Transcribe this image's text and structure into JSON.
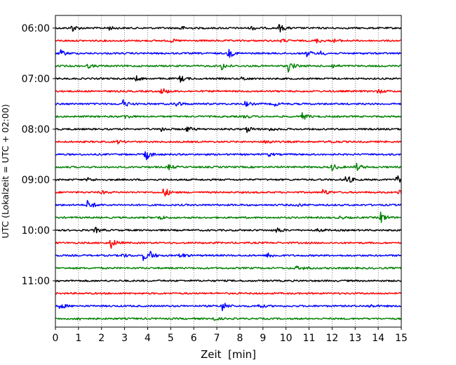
{
  "chart_data": {
    "type": "line",
    "title": "",
    "xlabel": "Zeit  [min]",
    "ylabel": "UTC (Lokalzeit = UTC + 02:00)",
    "xlim": [
      0,
      15
    ],
    "x_ticks": [
      "0",
      "1",
      "2",
      "3",
      "4",
      "5",
      "6",
      "7",
      "8",
      "9",
      "10",
      "11",
      "12",
      "13",
      "14",
      "15"
    ],
    "y_ticks": [
      "06:00",
      "07:00",
      "08:00",
      "09:00",
      "10:00",
      "11:00"
    ],
    "grid": "vertical dotted",
    "legend": "none",
    "colors": [
      "#000000",
      "#ff0000",
      "#0000ff",
      "#008000"
    ],
    "series": [
      {
        "time": "06:00",
        "color": "#000000",
        "events": [
          [
            0.7,
            1.0
          ],
          [
            2.3,
            0.5
          ],
          [
            5.4,
            0.6
          ],
          [
            8.5,
            0.5
          ],
          [
            9.7,
            1.1
          ]
        ]
      },
      {
        "time": "06:15",
        "color": "#ff0000",
        "events": [
          [
            5.0,
            0.4
          ],
          [
            9.8,
            0.4
          ],
          [
            11.3,
            0.6
          ],
          [
            12.1,
            0.4
          ]
        ]
      },
      {
        "time": "06:30",
        "color": "#0000ff",
        "events": [
          [
            0.2,
            0.9
          ],
          [
            7.5,
            1.2
          ],
          [
            10.9,
            0.8
          ],
          [
            11.5,
            0.5
          ]
        ]
      },
      {
        "time": "06:45",
        "color": "#008000",
        "events": [
          [
            1.4,
            0.5
          ],
          [
            7.2,
            1.0
          ],
          [
            10.1,
            1.5
          ],
          [
            12.0,
            0.5
          ]
        ]
      },
      {
        "time": "07:00",
        "color": "#000000",
        "events": [
          [
            3.5,
            0.6
          ],
          [
            5.4,
            0.9
          ],
          [
            8.1,
            0.5
          ]
        ]
      },
      {
        "time": "07:15",
        "color": "#ff0000",
        "events": [
          [
            4.6,
            1.0
          ],
          [
            14.0,
            0.6
          ]
        ]
      },
      {
        "time": "07:30",
        "color": "#0000ff",
        "events": [
          [
            2.9,
            1.2
          ],
          [
            5.2,
            1.0
          ],
          [
            8.2,
            0.7
          ],
          [
            9.5,
            0.5
          ]
        ]
      },
      {
        "time": "07:45",
        "color": "#008000",
        "events": [
          [
            3.0,
            0.6
          ],
          [
            8.2,
            0.5
          ],
          [
            10.7,
            1.0
          ]
        ]
      },
      {
        "time": "08:00",
        "color": "#000000",
        "events": [
          [
            4.6,
            0.6
          ],
          [
            5.7,
            0.7
          ],
          [
            8.3,
            0.8
          ],
          [
            9.3,
            0.4
          ]
        ]
      },
      {
        "time": "08:15",
        "color": "#ff0000",
        "events": [
          [
            2.7,
            0.4
          ],
          [
            9.1,
            0.8
          ],
          [
            11.9,
            0.4
          ]
        ]
      },
      {
        "time": "08:30",
        "color": "#0000ff",
        "events": [
          [
            3.9,
            1.6
          ],
          [
            9.2,
            0.5
          ]
        ]
      },
      {
        "time": "08:45",
        "color": "#008000",
        "events": [
          [
            4.9,
            0.7
          ],
          [
            12.0,
            0.9
          ],
          [
            13.0,
            1.2
          ]
        ]
      },
      {
        "time": "09:00",
        "color": "#000000",
        "events": [
          [
            1.4,
            0.5
          ],
          [
            12.6,
            1.4
          ],
          [
            14.8,
            1.2
          ]
        ]
      },
      {
        "time": "09:15",
        "color": "#ff0000",
        "events": [
          [
            2.0,
            0.4
          ],
          [
            4.7,
            1.4
          ],
          [
            11.6,
            0.9
          ],
          [
            14.9,
            0.8
          ]
        ]
      },
      {
        "time": "09:30",
        "color": "#0000ff",
        "events": [
          [
            1.4,
            1.5
          ],
          [
            10.5,
            0.4
          ]
        ]
      },
      {
        "time": "09:45",
        "color": "#008000",
        "events": [
          [
            4.5,
            0.6
          ],
          [
            12.3,
            0.4
          ],
          [
            14.1,
            1.4
          ]
        ]
      },
      {
        "time": "10:00",
        "color": "#000000",
        "events": [
          [
            1.7,
            0.8
          ],
          [
            9.6,
            0.8
          ],
          [
            11.4,
            0.5
          ]
        ]
      },
      {
        "time": "10:15",
        "color": "#ff0000",
        "events": [
          [
            2.4,
            1.4
          ]
        ]
      },
      {
        "time": "10:30",
        "color": "#0000ff",
        "events": [
          [
            2.9,
            0.5
          ],
          [
            3.8,
            1.2
          ],
          [
            4.1,
            0.9
          ],
          [
            5.4,
            0.7
          ],
          [
            9.2,
            0.8
          ]
        ]
      },
      {
        "time": "10:45",
        "color": "#008000",
        "events": [
          [
            10.4,
            0.5
          ],
          [
            10.8,
            0.4
          ]
        ]
      },
      {
        "time": "11:00",
        "color": "#000000",
        "events": []
      },
      {
        "time": "11:15",
        "color": "#ff0000",
        "events": []
      },
      {
        "time": "11:30",
        "color": "#0000ff",
        "events": [
          [
            0.2,
            0.8
          ],
          [
            7.2,
            1.4
          ],
          [
            8.8,
            0.5
          ],
          [
            13.6,
            0.4
          ]
        ]
      },
      {
        "time": "11:45",
        "color": "#008000",
        "events": [
          [
            0.9,
            0.4
          ],
          [
            6.8,
            0.5
          ]
        ]
      }
    ]
  }
}
